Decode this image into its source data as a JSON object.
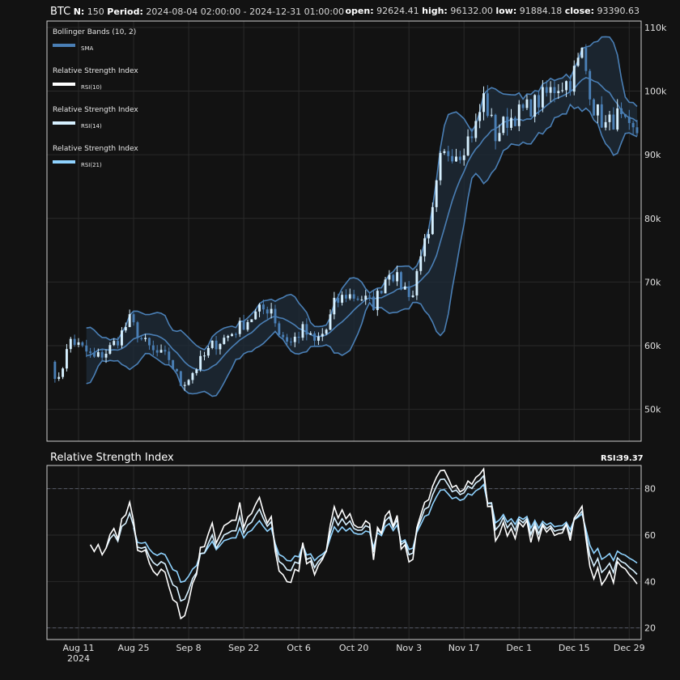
{
  "header": {
    "symbol": "BTC",
    "n_label": "N:",
    "n_value": "150",
    "period_label": "Period:",
    "period_value": "2024-08-04 02:00:00 - 2024-12-31 01:00:00",
    "open_label": "open:",
    "open_value": "92624.41",
    "high_label": "high:",
    "high_value": "96132.00",
    "low_label": "low:",
    "low_value": "91884.18",
    "close_label": "close:",
    "close_value": "93390.63"
  },
  "legend": [
    {
      "title": "Bollinger Bands (10, 2)",
      "entry": "SMA",
      "color": "#4a7fb5"
    },
    {
      "title": "Relative Strength Index",
      "entry": "RSI(10)",
      "color": "#ffffff"
    },
    {
      "title": "Relative Strength Index",
      "entry": "RSI(14)",
      "color": "#d6f0ff"
    },
    {
      "title": "Relative Strength Index",
      "entry": "RSI(21)",
      "color": "#8fd3ff"
    }
  ],
  "rsi_panel": {
    "title": "Relative Strength Index",
    "readout_label": "RSI:",
    "readout_value": "39.37"
  },
  "colors": {
    "background": "#121212",
    "band_line": "#4a7fb5",
    "band_fill": "#1f2c3a",
    "candle_up": "#d6f0ff",
    "candle_down": "#4a7fb5",
    "grid": "#2a2a2a"
  },
  "chart_data": [
    {
      "type": "candlestick",
      "title": "",
      "x_range": [
        "2024-08-04",
        "2024-12-31"
      ],
      "y_range": [
        45000,
        111000
      ],
      "yticks": [
        50000,
        60000,
        70000,
        80000,
        90000,
        100000,
        110000
      ],
      "ytick_labels": [
        "50k",
        "60k",
        "70k",
        "80k",
        "90k",
        "100k",
        "110k"
      ],
      "xticks": [
        "2024-08-11",
        "2024-08-25",
        "2024-09-08",
        "2024-09-22",
        "2024-10-06",
        "2024-10-20",
        "2024-11-03",
        "2024-11-17",
        "2024-12-01",
        "2024-12-15",
        "2024-12-29"
      ],
      "xtick_labels": [
        "Aug 11",
        "Aug 25",
        "Sep 8",
        "Sep 22",
        "Oct 6",
        "Oct 20",
        "Nov 3",
        "Nov 17",
        "Dec 1",
        "Dec 15",
        "Dec 29"
      ],
      "xtick_sublabel": "2024",
      "close_anchors": [
        [
          "2024-08-04",
          58500
        ],
        [
          "2024-08-05",
          54000
        ],
        [
          "2024-08-07",
          57000
        ],
        [
          "2024-08-09",
          61000
        ],
        [
          "2024-08-12",
          59500
        ],
        [
          "2024-08-15",
          58000
        ],
        [
          "2024-08-18",
          59000
        ],
        [
          "2024-08-21",
          61000
        ],
        [
          "2024-08-24",
          64000
        ],
        [
          "2024-08-27",
          61000
        ],
        [
          "2024-08-30",
          59000
        ],
        [
          "2024-09-03",
          58000
        ],
        [
          "2024-09-06",
          54000
        ],
        [
          "2024-09-08",
          55000
        ],
        [
          "2024-09-11",
          57500
        ],
        [
          "2024-09-14",
          60000
        ],
        [
          "2024-09-18",
          61500
        ],
        [
          "2024-09-22",
          63500
        ],
        [
          "2024-09-26",
          65500
        ],
        [
          "2024-09-29",
          66000
        ],
        [
          "2024-10-01",
          62000
        ],
        [
          "2024-10-04",
          60500
        ],
        [
          "2024-10-07",
          62500
        ],
        [
          "2024-10-10",
          60500
        ],
        [
          "2024-10-13",
          62500
        ],
        [
          "2024-10-15",
          66500
        ],
        [
          "2024-10-18",
          68000
        ],
        [
          "2024-10-22",
          67500
        ],
        [
          "2024-10-25",
          66500
        ],
        [
          "2024-10-29",
          72000
        ],
        [
          "2024-11-01",
          69500
        ],
        [
          "2024-11-04",
          68000
        ],
        [
          "2024-11-06",
          75000
        ],
        [
          "2024-11-08",
          76500
        ],
        [
          "2024-11-11",
          89000
        ],
        [
          "2024-11-13",
          90500
        ],
        [
          "2024-11-16",
          90500
        ],
        [
          "2024-11-20",
          94500
        ],
        [
          "2024-11-22",
          99000
        ],
        [
          "2024-11-25",
          93000
        ],
        [
          "2024-11-28",
          95500
        ],
        [
          "2024-12-01",
          96500
        ],
        [
          "2024-12-05",
          98000
        ],
        [
          "2024-12-08",
          99500
        ],
        [
          "2024-12-11",
          101000
        ],
        [
          "2024-12-14",
          101500
        ],
        [
          "2024-12-17",
          106000
        ],
        [
          "2024-12-20",
          97500
        ],
        [
          "2024-12-23",
          94500
        ],
        [
          "2024-12-26",
          96000
        ],
        [
          "2024-12-29",
          93500
        ],
        [
          "2024-12-31",
          93390.63
        ]
      ],
      "bollinger": {
        "period": 10,
        "stddev": 2,
        "name": "Bollinger Bands (10, 2)",
        "middle": "SMA"
      }
    },
    {
      "type": "line",
      "title": "Relative Strength Index",
      "y_range": [
        15,
        90
      ],
      "yticks": [
        20,
        40,
        60,
        80
      ],
      "ytick_labels": [
        "20",
        "40",
        "60",
        "80"
      ],
      "reference_lines": [
        20,
        80
      ],
      "series": [
        {
          "name": "RSI(10)",
          "period": 10,
          "color": "#ffffff"
        },
        {
          "name": "RSI(14)",
          "period": 14,
          "color": "#d6f0ff"
        },
        {
          "name": "RSI(21)",
          "period": 21,
          "color": "#8fd3ff"
        }
      ]
    }
  ]
}
